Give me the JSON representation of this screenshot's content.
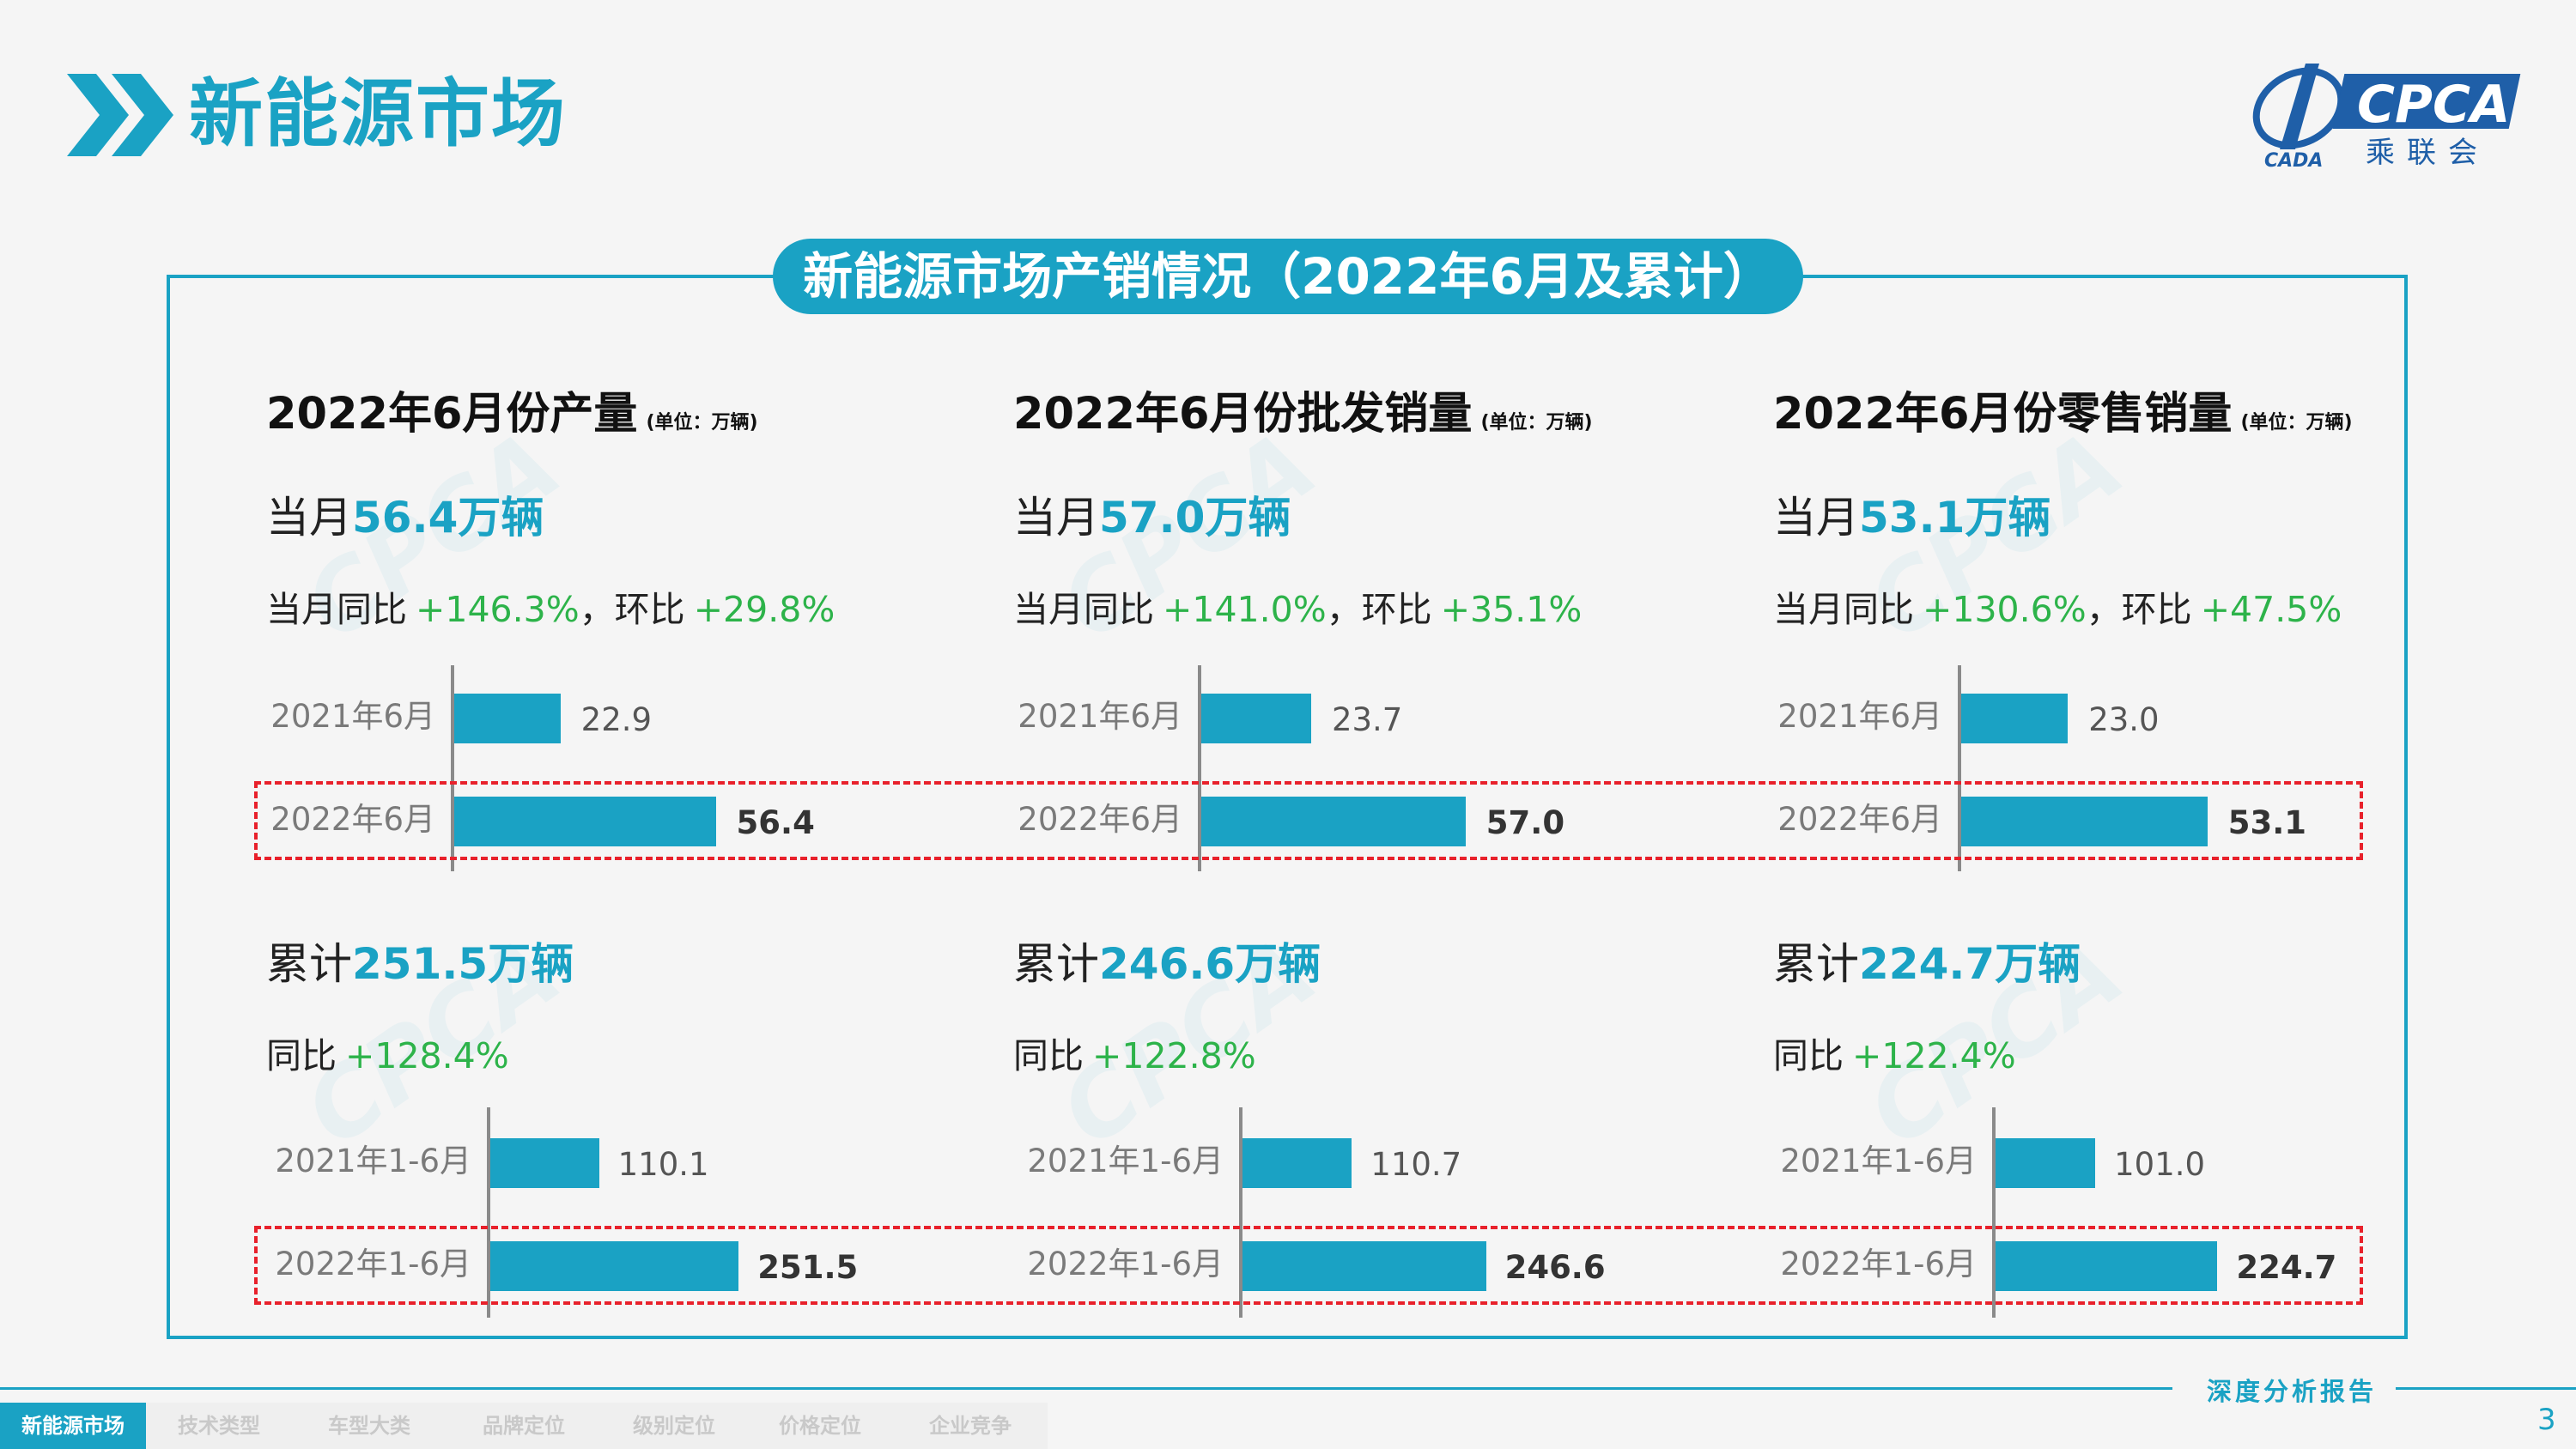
{
  "header": {
    "title": "新能源市场",
    "logo_text": "CPCA",
    "logo_sub": "乘联会",
    "logo_small": "CADA"
  },
  "banner": "新能源市场产销情况（2022年6月及累计）",
  "panels": [
    {
      "title": "2022年6月份产量",
      "unit": "(单位：万辆)",
      "month_prefix": "当月",
      "month_value": "56.4万辆",
      "month_yoy_label": "当月同比",
      "month_yoy": "+146.3%",
      "month_sep": "，环比",
      "month_mom": "+29.8%",
      "month_bars": [
        {
          "label": "2021年6月",
          "value": 22.9,
          "value_text": "22.9"
        },
        {
          "label": "2022年6月",
          "value": 56.4,
          "value_text": "56.4"
        }
      ],
      "cum_prefix": "累计",
      "cum_value": "251.5万辆",
      "cum_yoy_label": "同比",
      "cum_yoy": "+128.4%",
      "cum_bars": [
        {
          "label": "2021年1-6月",
          "value": 110.1,
          "value_text": "110.1"
        },
        {
          "label": "2022年1-6月",
          "value": 251.5,
          "value_text": "251.5"
        }
      ]
    },
    {
      "title": "2022年6月份批发销量",
      "unit": "(单位：万辆)",
      "month_prefix": "当月",
      "month_value": "57.0万辆",
      "month_yoy_label": "当月同比",
      "month_yoy": "+141.0%",
      "month_sep": "，环比",
      "month_mom": "+35.1%",
      "month_bars": [
        {
          "label": "2021年6月",
          "value": 23.7,
          "value_text": "23.7"
        },
        {
          "label": "2022年6月",
          "value": 57.0,
          "value_text": "57.0"
        }
      ],
      "cum_prefix": "累计",
      "cum_value": "246.6万辆",
      "cum_yoy_label": "同比",
      "cum_yoy": "+122.8%",
      "cum_bars": [
        {
          "label": "2021年1-6月",
          "value": 110.7,
          "value_text": "110.7"
        },
        {
          "label": "2022年1-6月",
          "value": 246.6,
          "value_text": "246.6"
        }
      ]
    },
    {
      "title": "2022年6月份零售销量",
      "unit": "(单位：万辆)",
      "month_prefix": "当月",
      "month_value": "53.1万辆",
      "month_yoy_label": "当月同比",
      "month_yoy": "+130.6%",
      "month_sep": "，环比",
      "month_mom": "+47.5%",
      "month_bars": [
        {
          "label": "2021年6月",
          "value": 23.0,
          "value_text": "23.0"
        },
        {
          "label": "2022年6月",
          "value": 53.1,
          "value_text": "53.1"
        }
      ],
      "cum_prefix": "累计",
      "cum_value": "224.7万辆",
      "cum_yoy_label": "同比",
      "cum_yoy": "+122.4%",
      "cum_bars": [
        {
          "label": "2021年1-6月",
          "value": 101.0,
          "value_text": "101.0"
        },
        {
          "label": "2022年1-6月",
          "value": 224.7,
          "value_text": "224.7"
        }
      ]
    }
  ],
  "footer": {
    "report_label": "深度分析报告",
    "page_number": "3",
    "tabs": [
      {
        "label": "新能源市场",
        "active": true
      },
      {
        "label": "技术类型",
        "active": false
      },
      {
        "label": "车型大类",
        "active": false
      },
      {
        "label": "品牌定位",
        "active": false
      },
      {
        "label": "级别定位",
        "active": false
      },
      {
        "label": "价格定位",
        "active": false
      },
      {
        "label": "企业竞争",
        "active": false
      }
    ]
  },
  "colors": {
    "accent": "#1aa2c4",
    "positive": "#2db34a",
    "highlight_box": "#e8212b"
  },
  "chart_data": [
    {
      "type": "bar",
      "categories": [
        "2021年6月",
        "2022年6月"
      ],
      "values": [
        22.9,
        56.4
      ]
    },
    {
      "type": "bar",
      "categories": [
        "2021年6月",
        "2022年6月"
      ],
      "values": [
        23.7,
        57.0
      ]
    },
    {
      "type": "bar",
      "categories": [
        "2021年6月",
        "2022年6月"
      ],
      "values": [
        23.0,
        53.1
      ]
    },
    {
      "type": "bar",
      "categories": [
        "2021年1-6月",
        "2022年1-6月"
      ],
      "values": [
        110.1,
        251.5
      ]
    },
    {
      "type": "bar",
      "categories": [
        "2021年1-6月",
        "2022年1-6月"
      ],
      "values": [
        110.7,
        246.6
      ]
    },
    {
      "type": "bar",
      "categories": [
        "2021年1-6月",
        "2022年1-6月"
      ],
      "values": [
        101.0,
        224.7
      ]
    }
  ]
}
